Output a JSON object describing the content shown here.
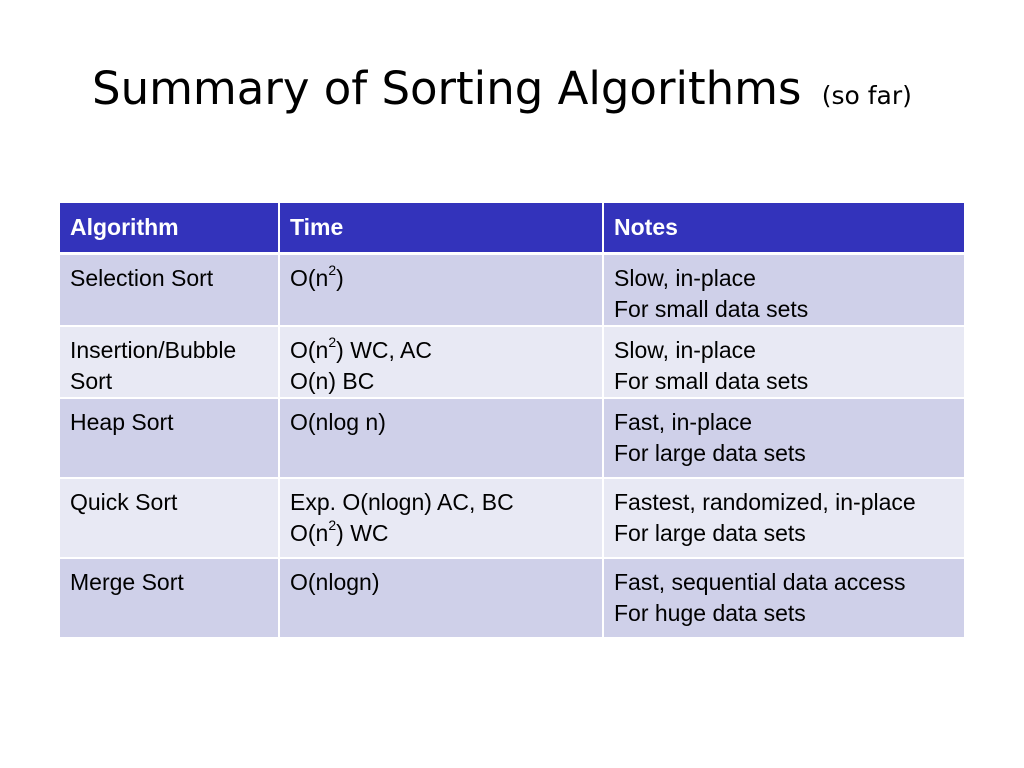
{
  "title": {
    "main": "Summary of Sorting Algorithms",
    "suffix": "(so far)"
  },
  "table": {
    "headers": [
      "Algorithm",
      "Time",
      "Notes"
    ],
    "rows": [
      {
        "algorithm": [
          "Selection Sort"
        ],
        "time": [
          {
            "pre": "O(n",
            "sup": "2",
            "post": ")"
          }
        ],
        "notes": [
          "Slow, in-place",
          "For small data sets"
        ]
      },
      {
        "algorithm": [
          "Insertion/Bubble",
          "Sort"
        ],
        "time": [
          {
            "pre": "O(n",
            "sup": "2",
            "post": ") WC, AC"
          },
          {
            "pre": "O(n) BC"
          }
        ],
        "notes": [
          "Slow, in-place",
          "For small data sets"
        ]
      },
      {
        "algorithm": [
          "Heap Sort"
        ],
        "time": [
          {
            "pre": "O(nlog n)"
          }
        ],
        "notes": [
          "Fast, in-place",
          "For large data sets"
        ]
      },
      {
        "algorithm": [
          "Quick Sort"
        ],
        "time": [
          {
            "pre": "Exp. O(nlogn)  AC, BC"
          },
          {
            "pre": "O(n",
            "sup": "2",
            "post": ") WC"
          }
        ],
        "notes": [
          "Fastest, randomized, in-place",
          "For large data sets"
        ]
      },
      {
        "algorithm": [
          "Merge Sort"
        ],
        "time": [
          {
            "pre": "O(nlogn)"
          }
        ],
        "notes": [
          "Fast, sequential data access",
          "For huge data sets"
        ]
      }
    ]
  }
}
